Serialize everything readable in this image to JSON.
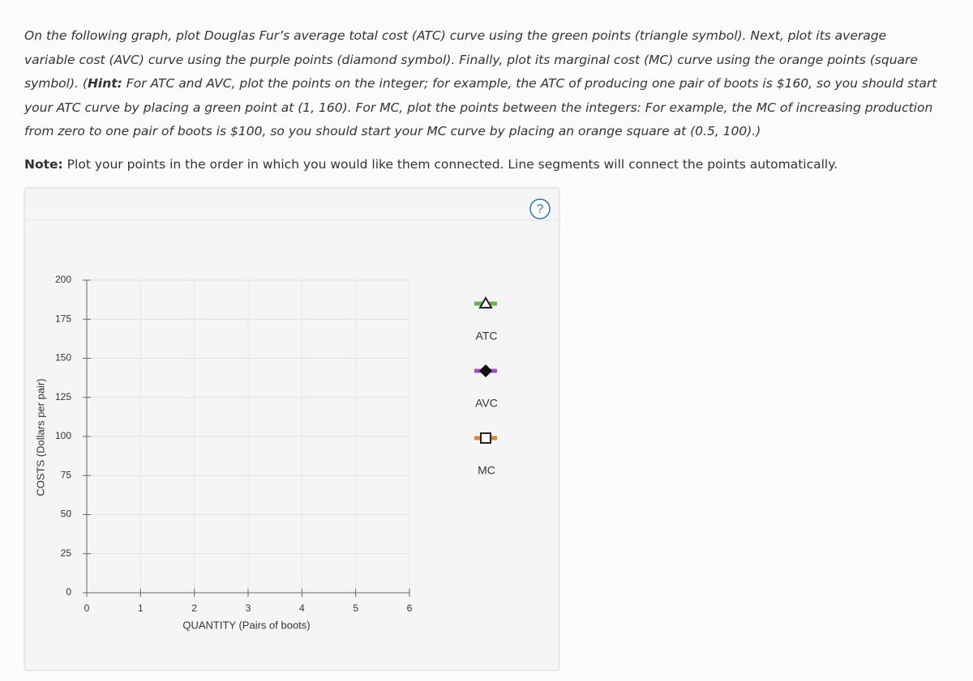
{
  "instructions": {
    "parts": [
      "On the following graph, plot Douglas Fur’s average total cost (ATC) curve using the green points (triangle symbol). Next, plot its average variable cost (AVC) curve using the purple points (diamond symbol). Finally, plot its marginal cost (MC) curve using the orange points (square symbol). (",
      "Hint:",
      " For ATC and AVC, plot the points on the integer; for example, the ATC of producing one pair of boots is $160, so you should start your ATC curve by placing a green point at (1, 160). For MC, plot the points between the integers: For example, the MC of increasing production from zero to one pair of boots is $100, so you should start your MC curve by placing an orange square at (0.5, 100).)"
    ]
  },
  "note": {
    "label": "Note:",
    "text": " Plot your points in the order in which you would like them connected. Line segments will connect the points automatically."
  },
  "graph": {
    "help": "?",
    "y_label": "COSTS (Dollars per pair)",
    "x_label": "QUANTITY (Pairs of boots)",
    "ylim": [
      0,
      200
    ],
    "yticks": [
      0,
      25,
      50,
      75,
      100,
      125,
      150,
      175,
      200
    ],
    "xlim": [
      0,
      6
    ],
    "xticks": [
      0,
      1,
      2,
      3,
      4,
      5,
      6
    ],
    "grid": true,
    "legend": [
      {
        "name": "ATC",
        "color": "#6ab04c",
        "symbol": "triangle"
      },
      {
        "name": "AVC",
        "color": "#a050c8",
        "symbol": "diamond"
      },
      {
        "name": "MC",
        "color": "#e8822e",
        "symbol": "square"
      }
    ]
  }
}
